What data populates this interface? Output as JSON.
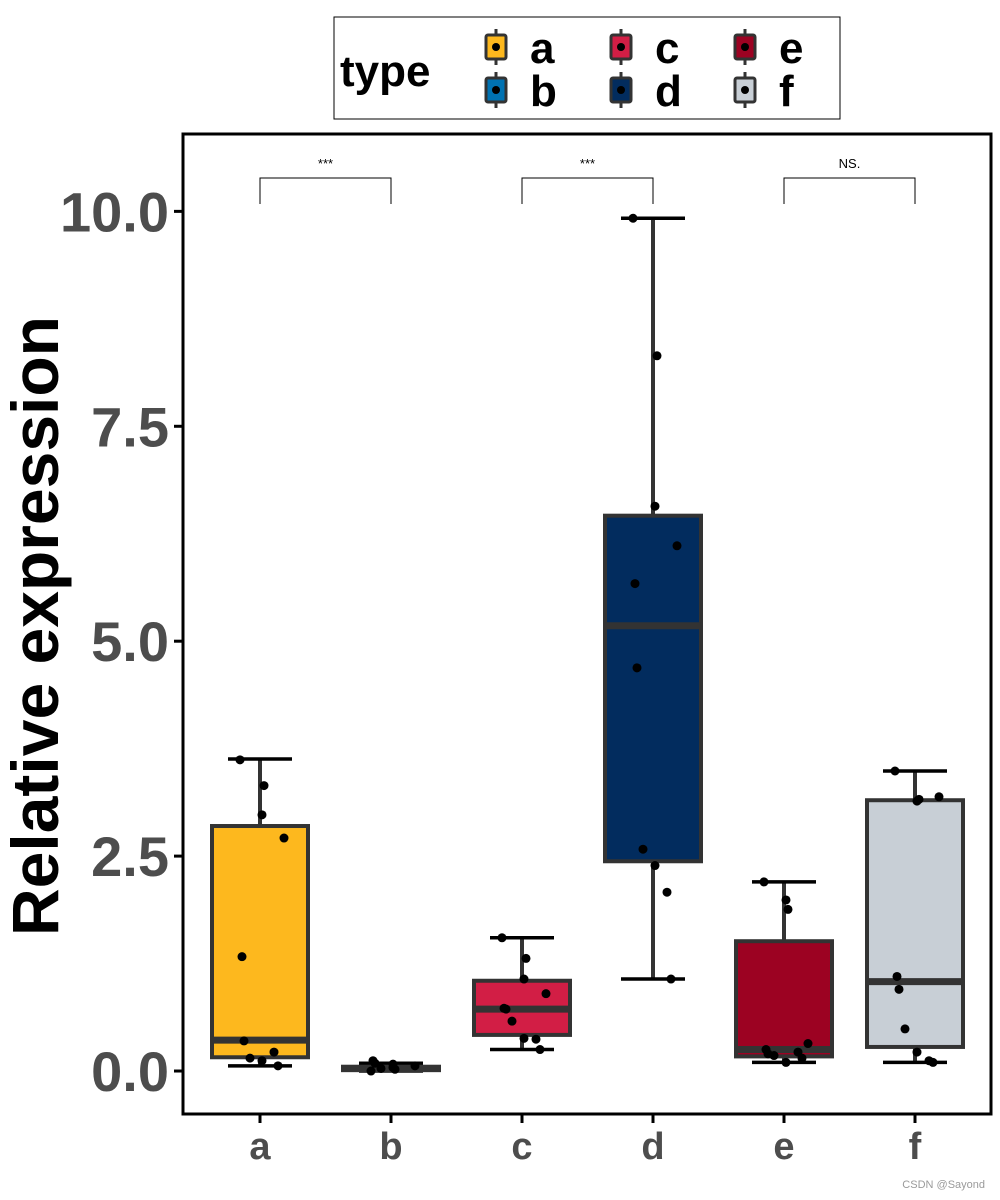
{
  "chart_data": {
    "type": "box",
    "title": "",
    "xlabel": "",
    "ylabel": "Relative expression",
    "ylim": [
      -0.5,
      10.9
    ],
    "yticks": [
      {
        "value": 0,
        "label": "0.0"
      },
      {
        "value": 2.5,
        "label": "2.5"
      },
      {
        "value": 5,
        "label": "5.0"
      },
      {
        "value": 7.5,
        "label": "7.5"
      },
      {
        "value": 10,
        "label": "10.0"
      }
    ],
    "categories": [
      "a",
      "b",
      "c",
      "d",
      "e",
      "f"
    ],
    "legend": {
      "title": "type",
      "placement": "top",
      "entries": [
        "a",
        "b",
        "c",
        "d",
        "e",
        "f"
      ]
    },
    "colors": {
      "a": "#FDB81E",
      "b": "#0072B2",
      "c": "#D21E45",
      "d": "#022C5E",
      "e": "#9C0222",
      "f": "#C8CFD6"
    },
    "boxes": [
      {
        "category": "a",
        "min": 0.06,
        "q1": 0.16,
        "median": 0.36,
        "q3": 2.85,
        "max": 3.63
      },
      {
        "category": "b",
        "min": 0.0,
        "q1": 0.01,
        "median": 0.03,
        "q3": 0.05,
        "max": 0.09
      },
      {
        "category": "c",
        "min": 0.25,
        "q1": 0.42,
        "median": 0.72,
        "q3": 1.05,
        "max": 1.55
      },
      {
        "category": "d",
        "min": 1.07,
        "q1": 2.44,
        "median": 5.18,
        "q3": 6.46,
        "max": 9.92
      },
      {
        "category": "e",
        "min": 0.1,
        "q1": 0.17,
        "median": 0.25,
        "q3": 1.51,
        "max": 2.2
      },
      {
        "category": "f",
        "min": 0.1,
        "q1": 0.28,
        "median": 1.04,
        "q3": 3.15,
        "max": 3.49
      }
    ],
    "points": [
      {
        "category": "a",
        "values": [
          3.62,
          3.32,
          2.98,
          2.71,
          1.33,
          0.35,
          0.15,
          0.12,
          0.22,
          0.06
        ]
      },
      {
        "category": "b",
        "values": [
          0.0,
          0.02,
          0.04,
          0.06,
          0.12,
          0.09,
          0.03,
          0.08
        ]
      },
      {
        "category": "c",
        "values": [
          1.55,
          1.31,
          1.07,
          0.9,
          0.73,
          0.72,
          0.58,
          0.38,
          0.37,
          0.25
        ]
      },
      {
        "category": "d",
        "values": [
          9.92,
          8.32,
          6.57,
          6.11,
          5.67,
          4.69,
          2.58,
          2.39,
          2.08,
          1.07
        ]
      },
      {
        "category": "e",
        "values": [
          2.2,
          1.88,
          1.99,
          0.32,
          0.25,
          0.2,
          0.18,
          0.1,
          0.22,
          0.15
        ]
      },
      {
        "category": "f",
        "values": [
          3.49,
          3.16,
          3.14,
          3.19,
          1.1,
          0.95,
          0.49,
          0.22,
          0.12,
          0.1
        ]
      }
    ],
    "comparisons": [
      {
        "groups": [
          "a",
          "b"
        ],
        "label": "***"
      },
      {
        "groups": [
          "c",
          "d"
        ],
        "label": "***"
      },
      {
        "groups": [
          "e",
          "f"
        ],
        "label": "NS."
      }
    ],
    "grid": false
  },
  "watermark": "CSDN @Sayond"
}
